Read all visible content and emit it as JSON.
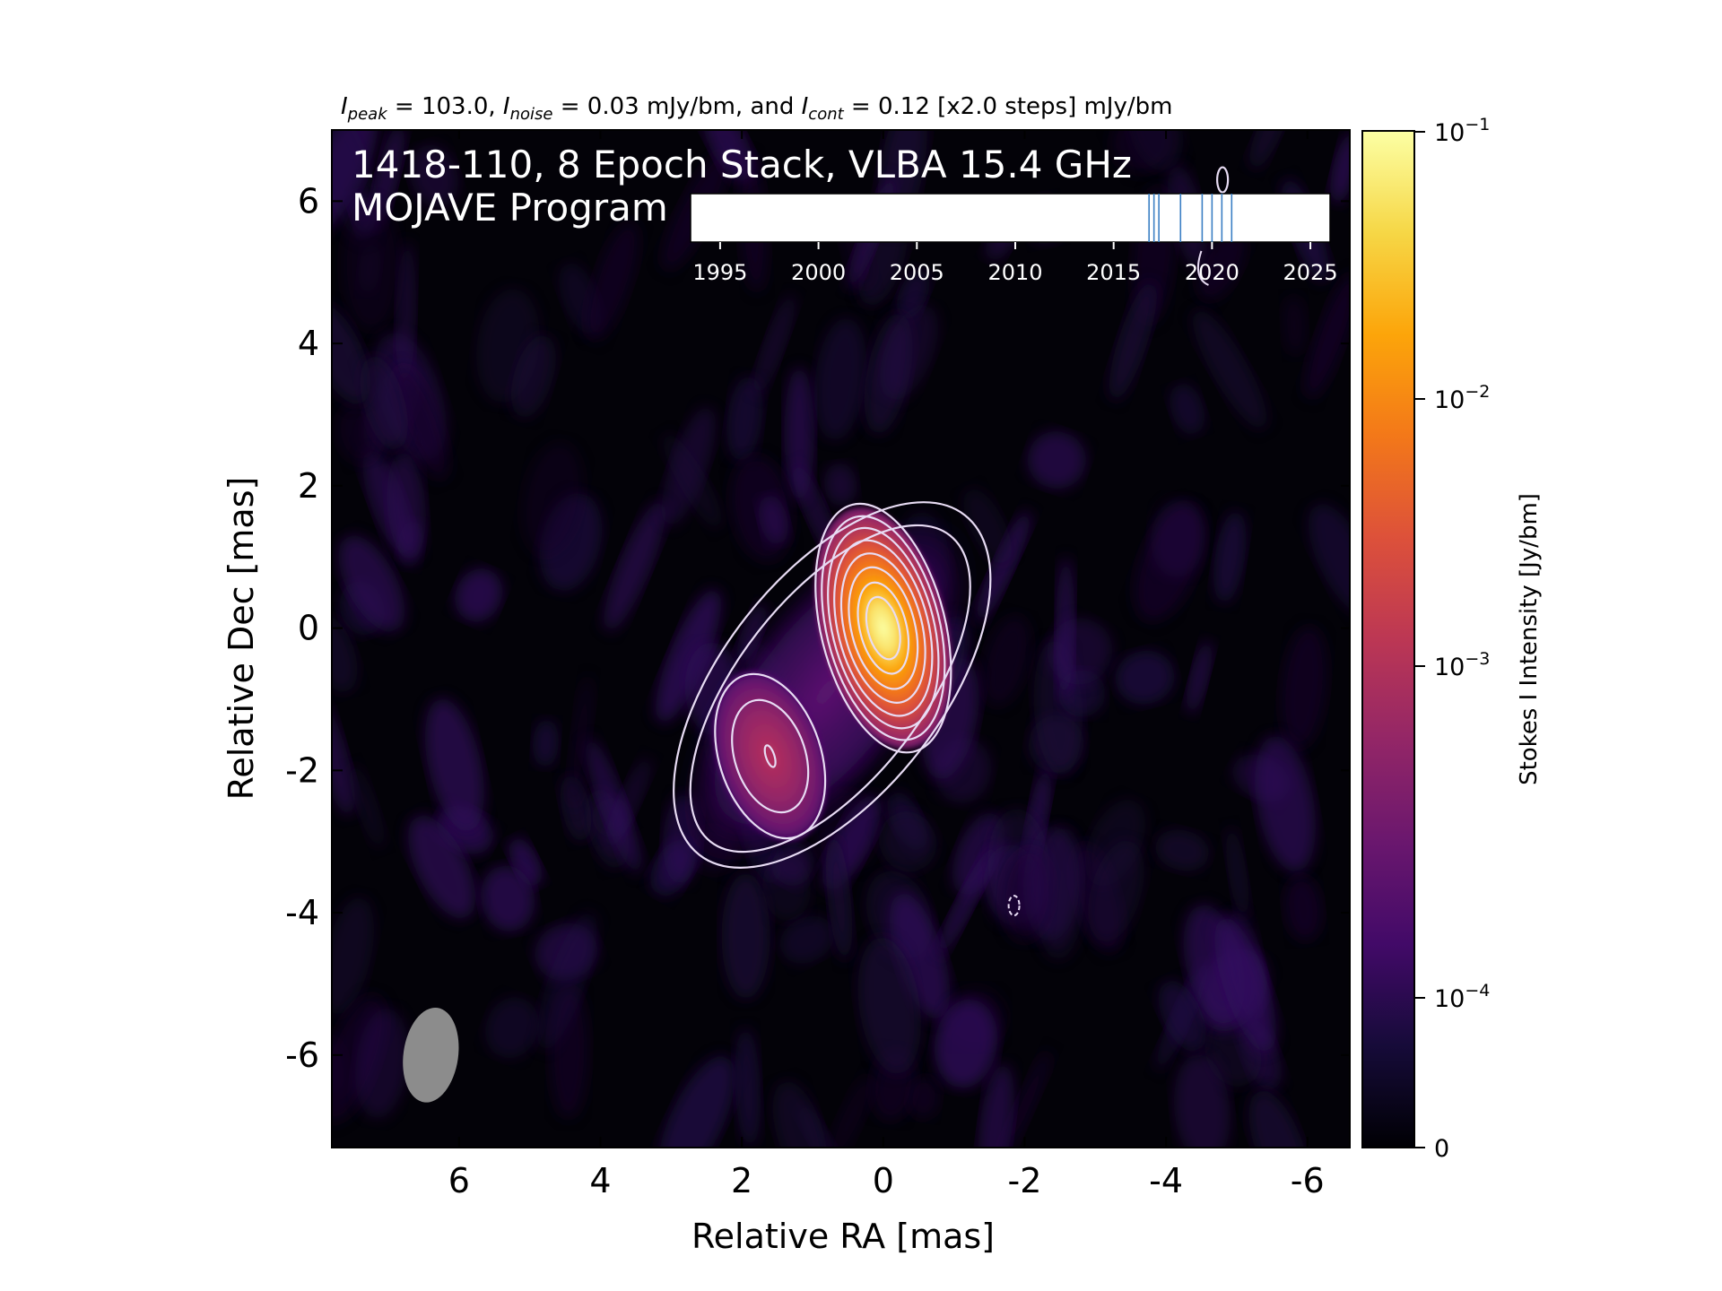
{
  "header": {
    "title_parts": {
      "i_peak_sym": "I",
      "i_peak_sub": "peak",
      "i_peak_val": " = 103.0, ",
      "i_noise_sym": "I",
      "i_noise_sub": "noise",
      "i_noise_val": " = 0.03 mJy/bm, and ",
      "i_cont_sym": "I",
      "i_cont_sub": "cont",
      "i_cont_val": " = 0.12 [x2.0 steps] mJy/bm"
    }
  },
  "overlay": {
    "line1": "1418-110, 8 Epoch Stack, VLBA 15.4 GHz",
    "line2": "MOJAVE Program"
  },
  "chart_data": {
    "type": "heatmap",
    "xlabel": "Relative RA [mas]",
    "ylabel": "Relative Dec [mas]",
    "xlim": [
      7.8,
      -6.6
    ],
    "ylim": [
      -7.3,
      7.0
    ],
    "x_ticks": [
      6,
      4,
      2,
      0,
      -2,
      -4,
      -6
    ],
    "x_tick_labels": [
      "6",
      "4",
      "2",
      "0",
      "-2",
      "-4",
      "-6"
    ],
    "y_ticks": [
      -6,
      -4,
      -2,
      0,
      2,
      4,
      6
    ],
    "y_tick_labels": [
      "-6",
      "-4",
      "-2",
      "0",
      "2",
      "4",
      "6"
    ],
    "colormap": "inferno",
    "colorbar": {
      "label": "Stokes I Intensity [Jy/bm]",
      "scale": "log",
      "ticks": [
        0,
        0.0001,
        0.001,
        0.01,
        0.1
      ],
      "tick_labels": [
        "0",
        "10−4",
        "10−3",
        "10−2",
        "10−1"
      ]
    },
    "components": [
      {
        "name": "core",
        "ra": 0.0,
        "dec": 0.0,
        "peak_jy": 0.103
      },
      {
        "name": "jet",
        "ra": 1.6,
        "dec": -1.8,
        "peak_jy": 0.0012
      }
    ],
    "contour_base_mjy": 0.12,
    "contour_step": 2.0,
    "beam": {
      "ra": 6.4,
      "dec": -6.0,
      "major_mas": 1.35,
      "minor_mas": 0.5,
      "pa_deg": 8
    },
    "epoch_axis": {
      "range": [
        1993.5,
        2026.0
      ],
      "ticks": [
        1995,
        2000,
        2005,
        2010,
        2015,
        2020,
        2025
      ],
      "tick_labels": [
        "1995",
        "2000",
        "2005",
        "2010",
        "2015",
        "2020",
        "2025"
      ],
      "epochs": [
        2016.8,
        2017.05,
        2017.3,
        2018.4,
        2019.5,
        2020.0,
        2020.5,
        2021.0
      ]
    }
  },
  "colors": {
    "contour": "#e8dcf4",
    "epoch_line": "#3b7fc4",
    "beam": "#8c8c8c"
  }
}
